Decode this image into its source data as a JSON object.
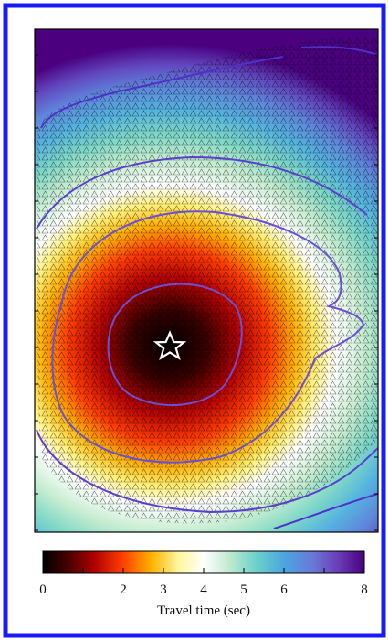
{
  "chart_data": {
    "type": "heatmap",
    "colorbar": {
      "label": "Travel time (sec)",
      "ticks": [
        0,
        1,
        2,
        3,
        4,
        5,
        6,
        7,
        8
      ],
      "tick_labels": [
        "0",
        "2",
        "3",
        "4",
        "5",
        "6",
        "8"
      ],
      "labeled_values": [
        0,
        2,
        3,
        4,
        5,
        6,
        8
      ],
      "range": [
        0,
        8
      ]
    },
    "contour_levels_sec": [
      2,
      4,
      6,
      8
    ],
    "epicenter": {
      "symbol": "star",
      "travel_time": 0
    },
    "stations": {
      "symbol": "triangle"
    },
    "colormap": [
      "#000000",
      "#5c0000",
      "#c80000",
      "#ff5a00",
      "#ffc300",
      "#fff7a8",
      "#ffffff",
      "#aee5c6",
      "#6fd3c8",
      "#4aa6e0",
      "#6a78d8",
      "#6b3bb8",
      "#4a007f"
    ],
    "frame_color": "#1a1aff"
  }
}
